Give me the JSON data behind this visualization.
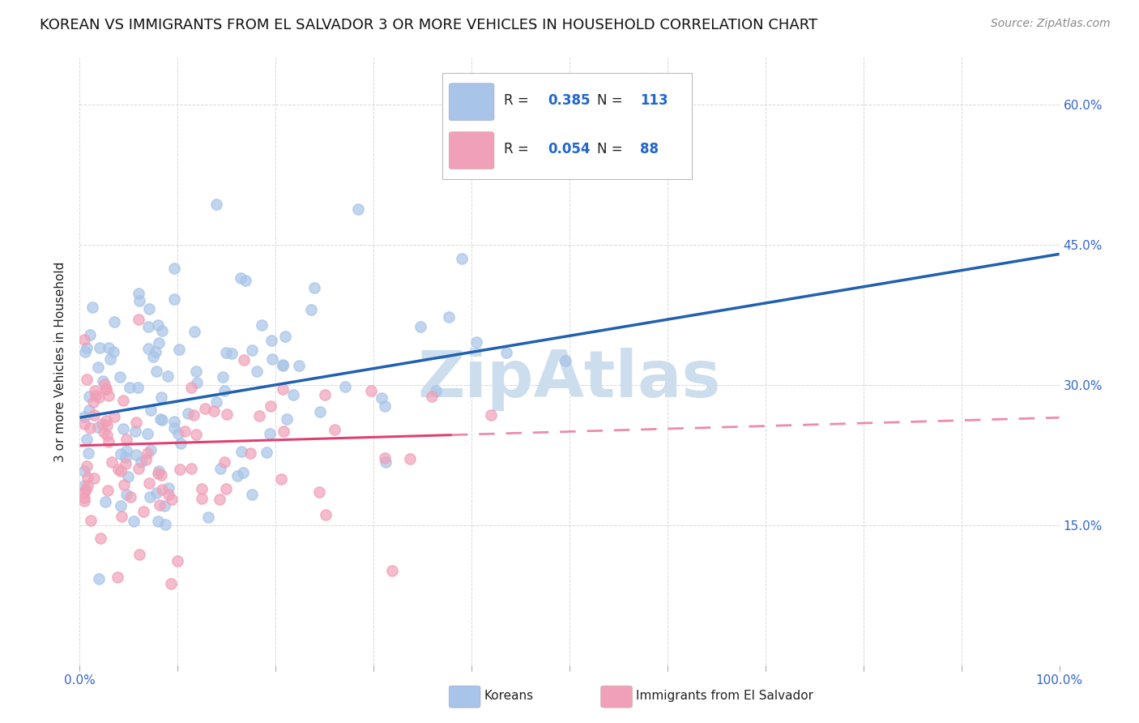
{
  "title": "KOREAN VS IMMIGRANTS FROM EL SALVADOR 3 OR MORE VEHICLES IN HOUSEHOLD CORRELATION CHART",
  "source": "Source: ZipAtlas.com",
  "ylabel": "3 or more Vehicles in Household",
  "xlim": [
    0.0,
    1.0
  ],
  "ylim": [
    0.0,
    0.65
  ],
  "xtick_positions": [
    0.0,
    0.1,
    0.2,
    0.3,
    0.4,
    0.5,
    0.6,
    0.7,
    0.8,
    0.9,
    1.0
  ],
  "xticklabels": [
    "0.0%",
    "",
    "",
    "",
    "",
    "",
    "",
    "",
    "",
    "",
    "100.0%"
  ],
  "ytick_positions": [
    0.0,
    0.15,
    0.3,
    0.45,
    0.6
  ],
  "yticklabels_right": [
    "",
    "15.0%",
    "30.0%",
    "45.0%",
    "60.0%"
  ],
  "korean_R": 0.385,
  "korean_N": 113,
  "salvador_R": 0.054,
  "salvador_N": 88,
  "korean_dot_color": "#a8c4e8",
  "korean_line_color": "#2060b0",
  "salvador_dot_color": "#f0a0b8",
  "salvador_line_color": "#e04070",
  "watermark": "ZipAtlas",
  "watermark_color": "#ccdded",
  "background_color": "#ffffff",
  "grid_color": "#d8d8d8",
  "title_fontsize": 13,
  "ylabel_fontsize": 11,
  "tick_fontsize": 11,
  "legend_fontsize": 12,
  "source_fontsize": 10,
  "korean_slope": 0.175,
  "korean_intercept": 0.265,
  "salvador_slope_solid": 0.03,
  "salvador_intercept": 0.235,
  "dot_size": 90,
  "dot_alpha": 0.7,
  "dot_linewidth": 1.2
}
